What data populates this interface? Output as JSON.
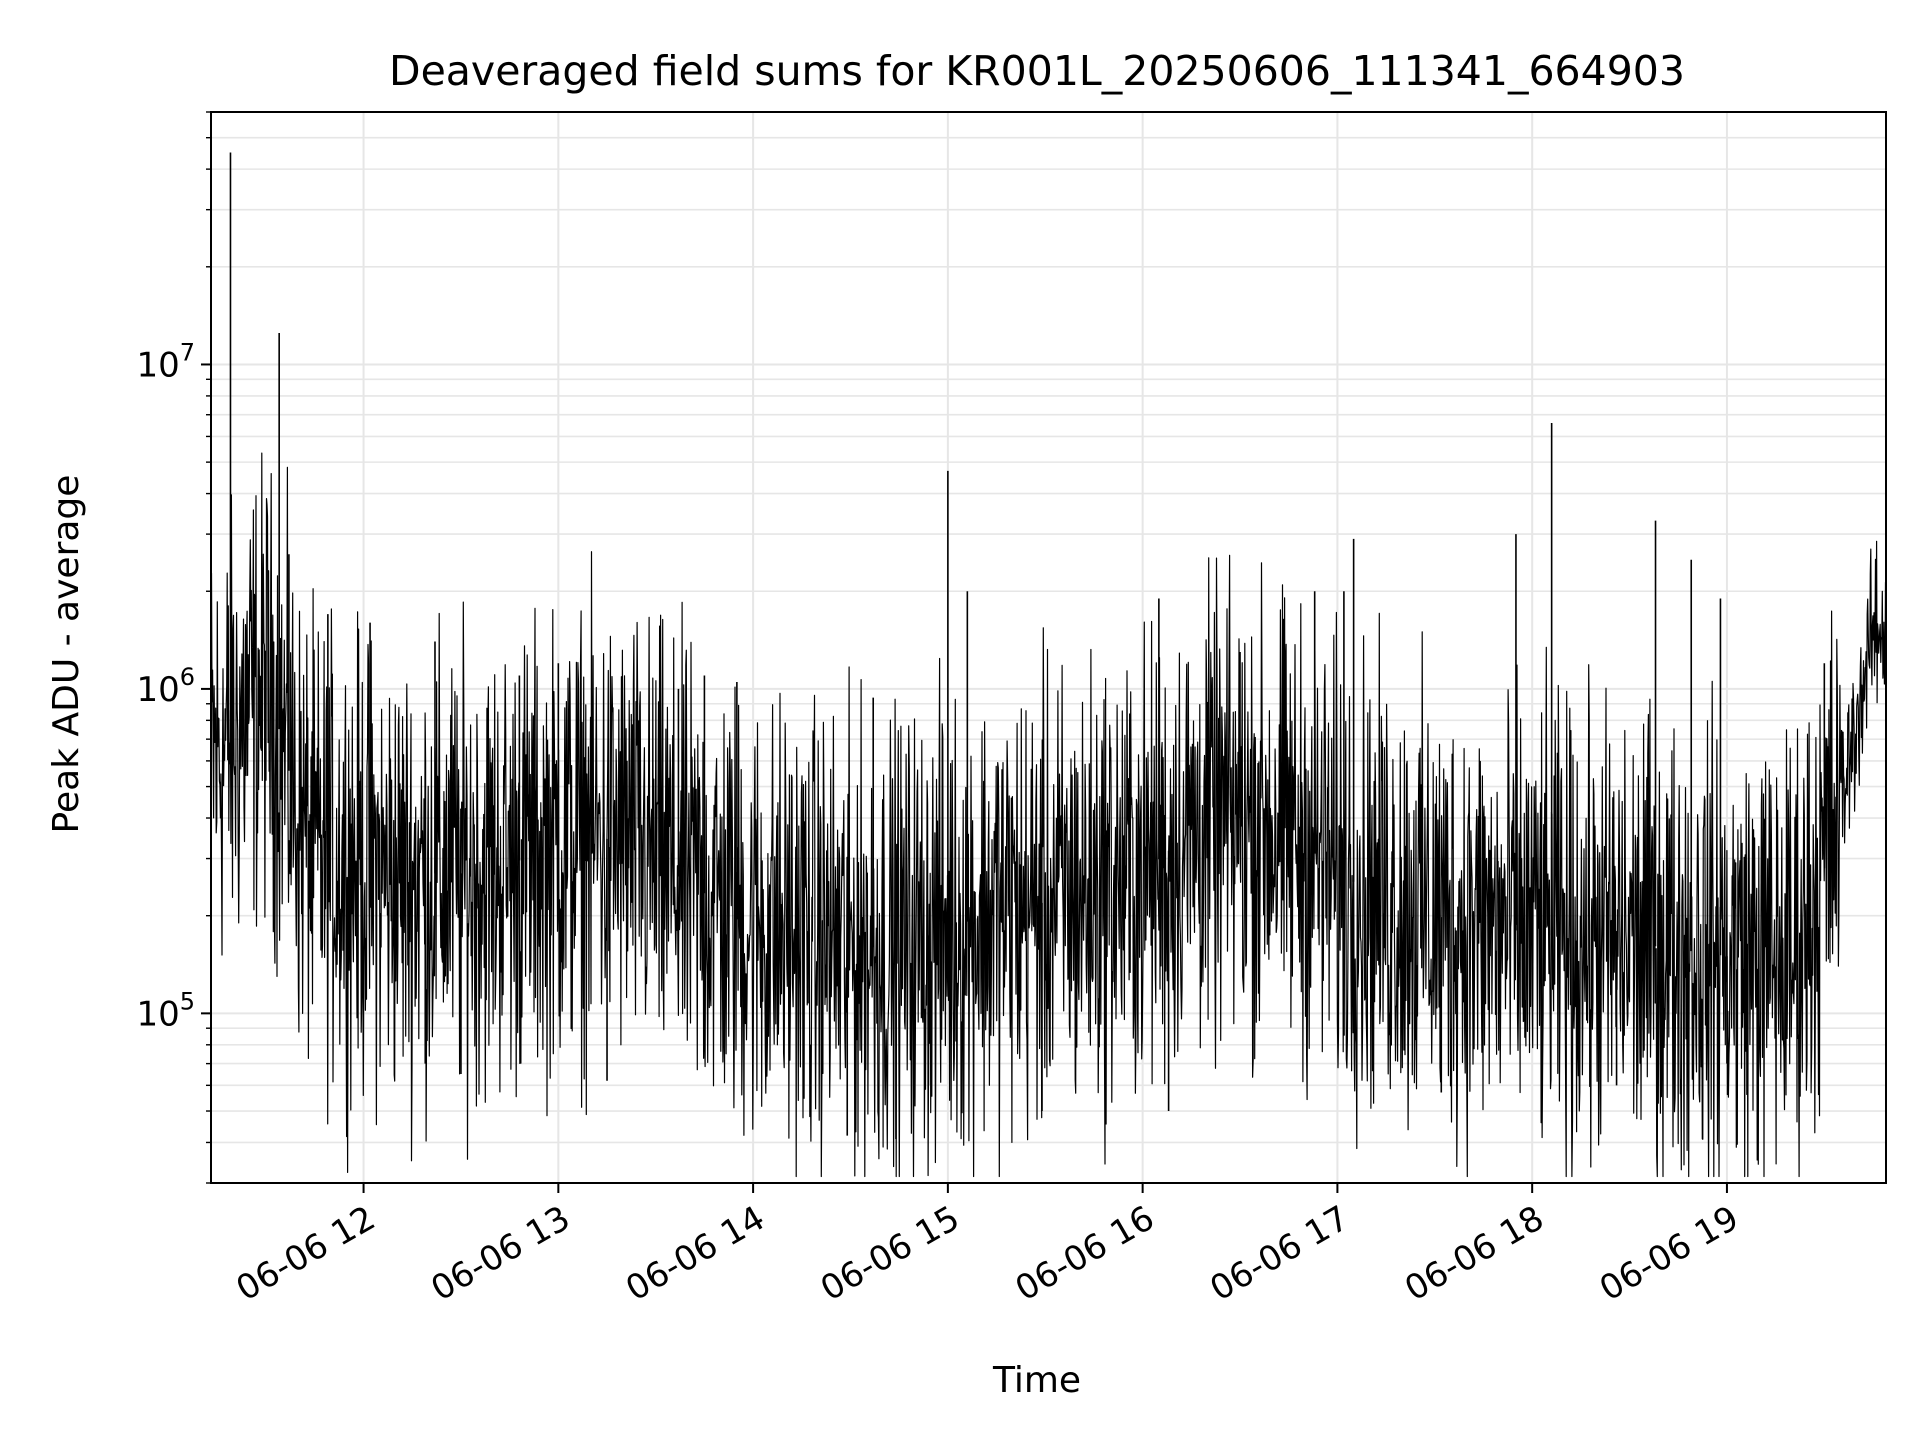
{
  "chart_data": {
    "type": "line",
    "title": "Deaveraged field sums for KR001L_20250606_111341_664903",
    "xlabel": "Time",
    "ylabel": "Peak ADU - average",
    "xlim": [
      "2025-06-06 11:13",
      "2025-06-06 19:49"
    ],
    "ylim": [
      30000,
      60000000
    ],
    "yscale": "log",
    "grid": true,
    "line_color": "#000000",
    "x_ticks": [
      {
        "t": "2025-06-06 12:00",
        "label": "06-06 12"
      },
      {
        "t": "2025-06-06 13:00",
        "label": "06-06 13"
      },
      {
        "t": "2025-06-06 14:00",
        "label": "06-06 14"
      },
      {
        "t": "2025-06-06 15:00",
        "label": "06-06 15"
      },
      {
        "t": "2025-06-06 16:00",
        "label": "06-06 16"
      },
      {
        "t": "2025-06-06 17:00",
        "label": "06-06 17"
      },
      {
        "t": "2025-06-06 18:00",
        "label": "06-06 18"
      },
      {
        "t": "2025-06-06 19:00",
        "label": "06-06 19"
      }
    ],
    "y_ticks": [
      {
        "value": 100000,
        "base": "10",
        "exp": "5"
      },
      {
        "value": 1000000,
        "base": "10",
        "exp": "6"
      },
      {
        "value": 10000000,
        "base": "10",
        "exp": "7"
      }
    ],
    "series": [
      {
        "x": [
          "2025-06-06 11:13",
          "2025-06-06 11:20",
          "2025-06-06 11:25",
          "2025-06-06 11:30",
          "2025-06-06 11:35",
          "2025-06-06 11:40",
          "2025-06-06 11:45",
          "2025-06-06 11:50",
          "2025-06-06 11:55",
          "2025-06-06 12:00",
          "2025-06-06 12:10",
          "2025-06-06 12:20",
          "2025-06-06 12:30",
          "2025-06-06 12:40",
          "2025-06-06 12:50",
          "2025-06-06 13:00",
          "2025-06-06 13:10",
          "2025-06-06 13:20",
          "2025-06-06 13:30",
          "2025-06-06 13:40",
          "2025-06-06 13:50",
          "2025-06-06 14:00",
          "2025-06-06 14:10",
          "2025-06-06 14:20",
          "2025-06-06 14:30",
          "2025-06-06 14:40",
          "2025-06-06 14:50",
          "2025-06-06 15:00",
          "2025-06-06 15:10",
          "2025-06-06 15:20",
          "2025-06-06 15:30",
          "2025-06-06 15:40",
          "2025-06-06 15:50",
          "2025-06-06 16:00",
          "2025-06-06 16:10",
          "2025-06-06 16:20",
          "2025-06-06 16:30",
          "2025-06-06 16:40",
          "2025-06-06 16:50",
          "2025-06-06 17:00",
          "2025-06-06 17:10",
          "2025-06-06 17:20",
          "2025-06-06 17:30",
          "2025-06-06 17:40",
          "2025-06-06 17:50",
          "2025-06-06 18:00",
          "2025-06-06 18:10",
          "2025-06-06 18:20",
          "2025-06-06 18:30",
          "2025-06-06 18:40",
          "2025-06-06 18:50",
          "2025-06-06 19:00",
          "2025-06-06 19:10",
          "2025-06-06 19:20",
          "2025-06-06 19:30",
          "2025-06-06 19:35",
          "2025-06-06 19:40",
          "2025-06-06 19:45",
          "2025-06-06 19:49"
        ],
        "y": [
          600000,
          700000,
          900000,
          1000000,
          700000,
          400000,
          300000,
          300000,
          300000,
          280000,
          260000,
          270000,
          270000,
          280000,
          300000,
          330000,
          350000,
          340000,
          300000,
          250000,
          220000,
          190000,
          180000,
          170000,
          160000,
          160000,
          170000,
          180000,
          200000,
          210000,
          220000,
          230000,
          250000,
          270000,
          330000,
          380000,
          400000,
          380000,
          330000,
          270000,
          240000,
          220000,
          200000,
          190000,
          180000,
          180000,
          170000,
          170000,
          165000,
          160000,
          155000,
          150000,
          150000,
          150000,
          280000,
          450000,
          800000,
          1500000,
          1500000
        ]
      }
    ],
    "spikes": [
      {
        "x": "2025-06-06 11:19",
        "y": 45000000
      },
      {
        "x": "2025-06-06 11:34",
        "y": 12500000
      },
      {
        "x": "2025-06-06 11:37",
        "y": 2600000
      },
      {
        "x": "2025-06-06 11:13",
        "y": 140000
      },
      {
        "x": "2025-06-06 11:49",
        "y": 1700000
      },
      {
        "x": "2025-06-06 12:02",
        "y": 1600000
      },
      {
        "x": "2025-06-06 12:22",
        "y": 1400000
      },
      {
        "x": "2025-06-06 12:19",
        "y": 70000
      },
      {
        "x": "2025-06-06 12:30",
        "y": 65000
      },
      {
        "x": "2025-06-06 12:48",
        "y": 1100000
      },
      {
        "x": "2025-06-06 13:00",
        "y": 1200000
      },
      {
        "x": "2025-06-06 13:15",
        "y": 62000
      },
      {
        "x": "2025-06-06 13:37",
        "y": 1000000
      },
      {
        "x": "2025-06-06 13:45",
        "y": 1100000
      },
      {
        "x": "2025-06-06 13:55",
        "y": 1050000
      },
      {
        "x": "2025-06-06 14:29",
        "y": 42000
      },
      {
        "x": "2025-06-06 14:37",
        "y": 940000
      },
      {
        "x": "2025-06-06 14:44",
        "y": 41000
      },
      {
        "x": "2025-06-06 14:54",
        "y": 60000
      },
      {
        "x": "2025-06-06 15:00",
        "y": 4700000
      },
      {
        "x": "2025-06-06 15:06",
        "y": 2000000
      },
      {
        "x": "2025-06-06 15:29",
        "y": 50000
      },
      {
        "x": "2025-06-06 16:05",
        "y": 1900000
      },
      {
        "x": "2025-06-06 16:08",
        "y": 50000
      },
      {
        "x": "2025-06-06 16:30",
        "y": 1300000
      },
      {
        "x": "2025-06-06 16:53",
        "y": 2000000
      },
      {
        "x": "2025-06-06 17:02",
        "y": 2000000
      },
      {
        "x": "2025-06-06 17:05",
        "y": 2900000
      },
      {
        "x": "2025-06-06 17:32",
        "y": 57000
      },
      {
        "x": "2025-06-06 17:55",
        "y": 3000000
      },
      {
        "x": "2025-06-06 18:06",
        "y": 6600000
      },
      {
        "x": "2025-06-06 18:26",
        "y": 60000
      },
      {
        "x": "2025-06-06 18:38",
        "y": 3300000
      },
      {
        "x": "2025-06-06 18:49",
        "y": 2500000
      },
      {
        "x": "2025-06-06 18:58",
        "y": 1900000
      },
      {
        "x": "2025-06-06 19:00",
        "y": 70000
      },
      {
        "x": "2025-06-06 19:30",
        "y": 1200000
      }
    ]
  }
}
